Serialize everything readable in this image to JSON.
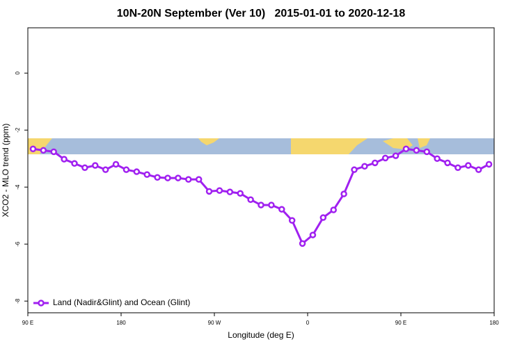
{
  "chart_data": {
    "type": "line",
    "title": "10N-20N September (Ver 10)   2015-01-01 to 2020-12-18",
    "x_label": "Longitude (deg E)",
    "y_label": "XCO2 - MLO trend (ppm)",
    "x": [
      95,
      105,
      115,
      125,
      135,
      145,
      155,
      165,
      175,
      185,
      195,
      205,
      215,
      225,
      235,
      245,
      255,
      265,
      275,
      285,
      295,
      305,
      315,
      325,
      335,
      345,
      355,
      365,
      375,
      385,
      395,
      405,
      415,
      425,
      435,
      445,
      455,
      465,
      475,
      485,
      495,
      505,
      515,
      525,
      535
    ],
    "series": [
      {
        "name": "Land (Nadir&Glint) and Ocean (Glint)",
        "color": "#a020f0",
        "values": [
          -2.66,
          -2.71,
          -2.76,
          -3.02,
          -3.17,
          -3.32,
          -3.24,
          -3.39,
          -3.2,
          -3.39,
          -3.46,
          -3.56,
          -3.66,
          -3.68,
          -3.68,
          -3.73,
          -3.73,
          -4.15,
          -4.12,
          -4.17,
          -4.22,
          -4.44,
          -4.63,
          -4.63,
          -4.78,
          -5.17,
          -5.98,
          -5.68,
          -5.07,
          -4.8,
          -4.24,
          -3.39,
          -3.27,
          -3.15,
          -2.98,
          -2.9,
          -2.66,
          -2.71,
          -2.76,
          -3.0,
          -3.15,
          -3.32,
          -3.24,
          -3.39,
          -3.2
        ]
      }
    ],
    "xlim": [
      90,
      540
    ],
    "xticks": [
      {
        "value": 90,
        "label": "90 E"
      },
      180,
      {
        "value": 270,
        "label": "90 W"
      },
      {
        "value": 360,
        "label": "0"
      },
      {
        "value": 450,
        "label": "90 E"
      },
      {
        "value": 540,
        "label": "180"
      }
    ],
    "ylim": [
      -8.41,
      1.59
    ],
    "yticks": [
      0,
      -2,
      -4,
      -6,
      -8
    ],
    "legend": "bottom-left"
  }
}
